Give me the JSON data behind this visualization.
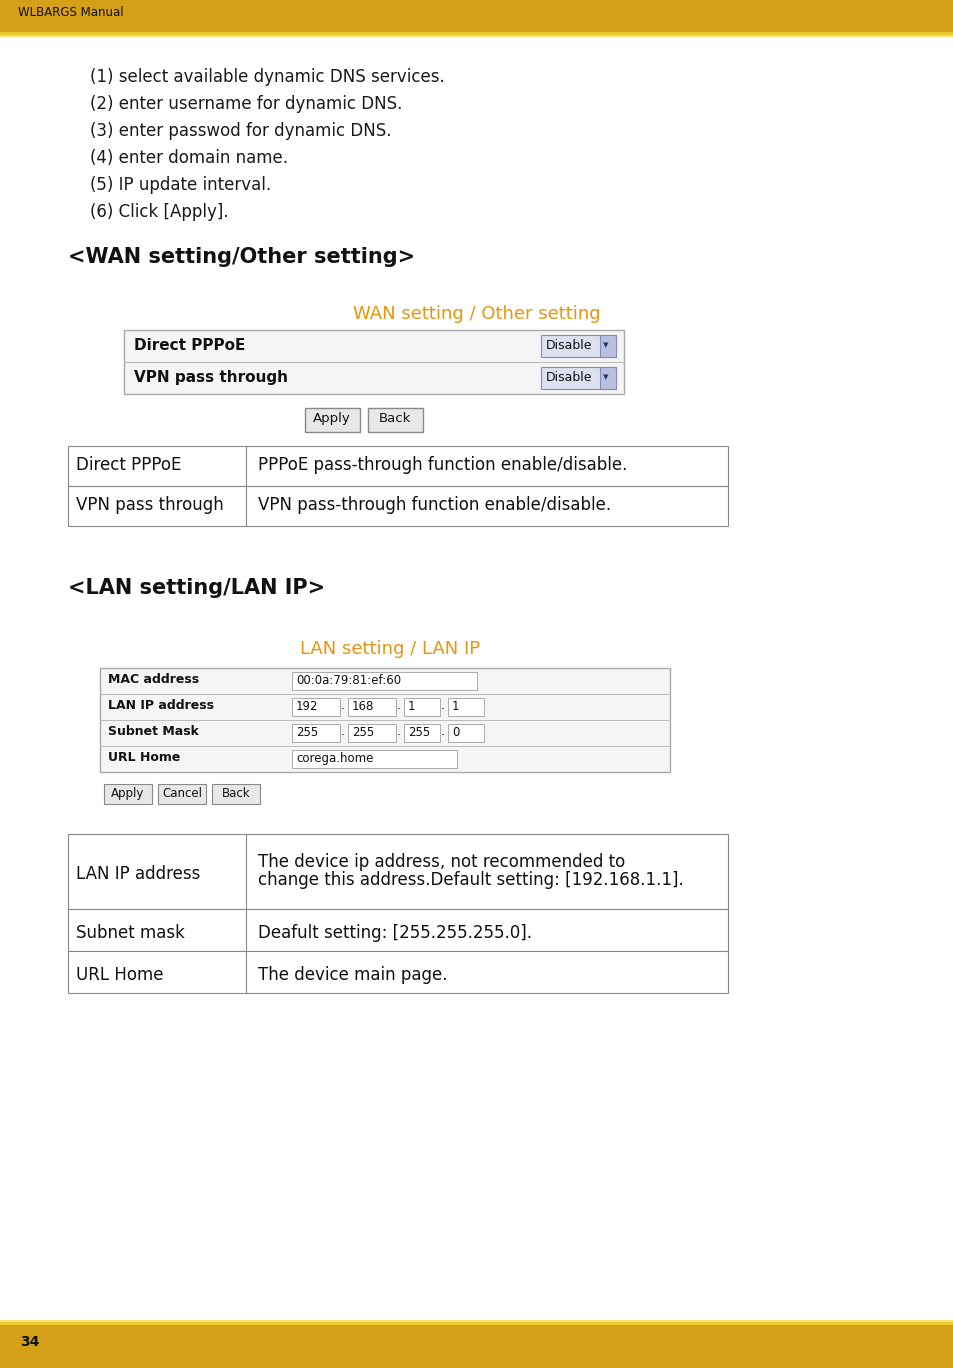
{
  "header_color": "#D4A017",
  "header_stripe1": "#F0C830",
  "header_stripe2": "#F8E070",
  "footer_color": "#D4A017",
  "bg_color": "#FFFFFF",
  "header_text": "WLBARGS Manual",
  "footer_page": "34",
  "body_text_color": "#1a1a1a",
  "orange_title_color": "#E8950A",
  "intro_lines": [
    "(1) select available dynamic DNS services.",
    "(2) enter username for dynamic DNS.",
    "(3) enter passwod for dynamic DNS.",
    "(4) enter domain name.",
    "(5) IP update interval.",
    "(6) Click [Apply]."
  ],
  "section1_heading": "<WAN setting/Other setting>",
  "wan_title": "WAN setting / Other setting",
  "wan_table_rows": [
    [
      "Direct PPPoE",
      "Disable"
    ],
    [
      "VPN pass through",
      "Disable"
    ]
  ],
  "wan_desc_rows": [
    [
      "Direct PPPoE",
      "PPPoE pass-through function enable/disable."
    ],
    [
      "VPN pass through",
      "VPN pass-through function enable/disable."
    ]
  ],
  "section2_heading": "<LAN setting/LAN IP>",
  "lan_title": "LAN setting / LAN IP",
  "lan_desc_rows": [
    [
      "LAN IP address",
      "The device ip address, not recommended to\nchange this address.Default setting: [192.168.1.1].",
      75
    ],
    [
      "Subnet mask",
      "Deafult setting: [255.255.255.0].",
      42
    ],
    [
      "URL Home",
      "The device main page.",
      42
    ]
  ]
}
